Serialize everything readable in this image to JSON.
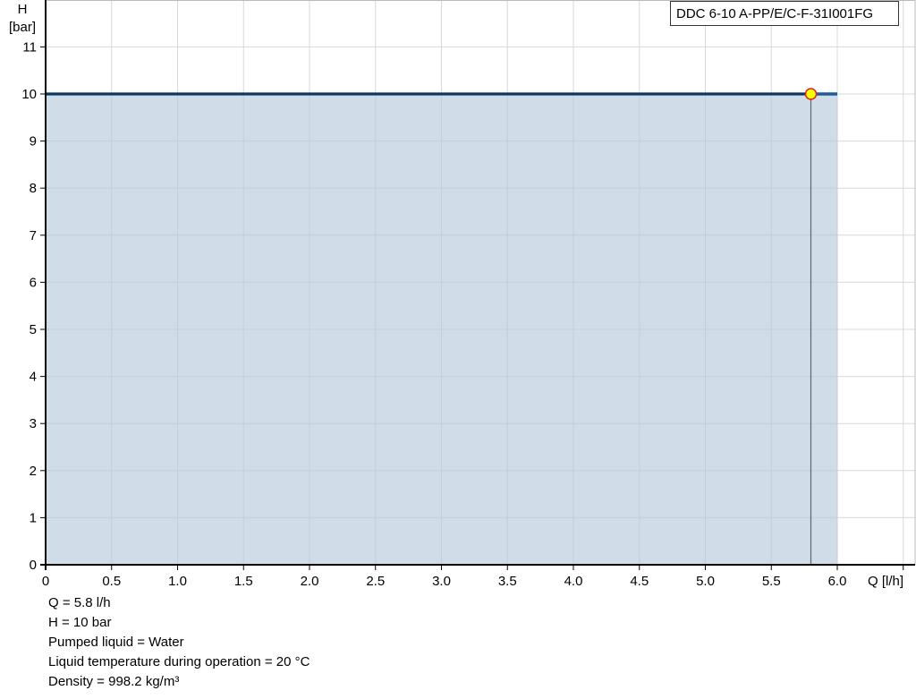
{
  "chart_data": {
    "type": "area",
    "title": "",
    "xlabel": "Q [l/h]",
    "ylabel_line1": "H",
    "ylabel_line2": "[bar]",
    "xlim": [
      0,
      6.5
    ],
    "ylim": [
      0,
      12
    ],
    "xticks": [
      "0",
      "0.5",
      "1.0",
      "1.5",
      "2.0",
      "2.5",
      "3.0",
      "3.5",
      "4.0",
      "4.5",
      "5.0",
      "5.5",
      "6.0"
    ],
    "xtick_values": [
      0,
      0.5,
      1,
      1.5,
      2,
      2.5,
      3,
      3.5,
      4,
      4.5,
      5,
      5.5,
      6
    ],
    "yticks": [
      "0",
      "1",
      "2",
      "3",
      "4",
      "5",
      "6",
      "7",
      "8",
      "9",
      "10",
      "11"
    ],
    "ytick_values": [
      0,
      1,
      2,
      3,
      4,
      5,
      6,
      7,
      8,
      9,
      10,
      11
    ],
    "grid": true,
    "legend_placement": "top-right",
    "series": [
      {
        "name": "DDC 6-10 A-PP/E/C-F-31I001FG",
        "x": [
          0,
          6.0
        ],
        "y": [
          10,
          10
        ]
      }
    ],
    "operating_point": {
      "x": 5.8,
      "y": 10
    },
    "colors": {
      "fill": "#d0dce7",
      "line": "#1f5c99",
      "line_dark": "#0d2a45",
      "point_fill": "#ffff00",
      "point_stroke": "#e02020",
      "grid": "#d8d8d8"
    }
  },
  "info": [
    "Q = 5.8 l/h",
    "H = 10 bar",
    "Pumped liquid = Water",
    "Liquid temperature during operation = 20 °C",
    "Density = 998.2 kg/m³"
  ]
}
